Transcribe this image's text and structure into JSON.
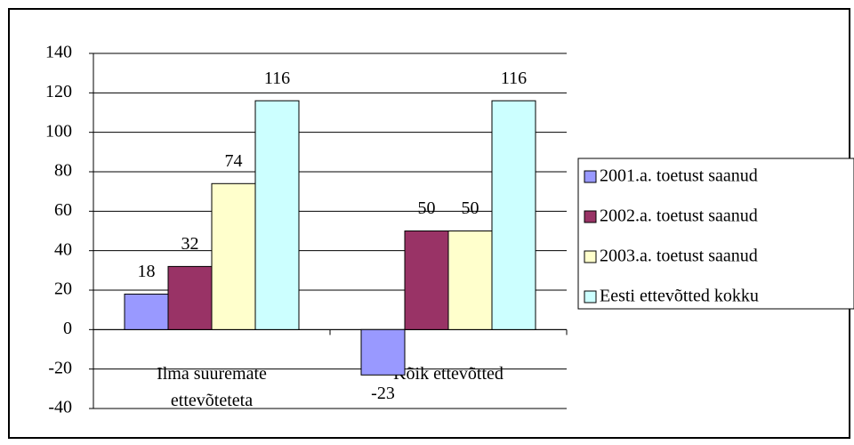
{
  "chart_data": {
    "type": "bar",
    "categories": [
      "Ilma suuremate ettevõteteta",
      "Kõik ettevõtted"
    ],
    "series": [
      {
        "name": "2001.a. toetust saanud",
        "color": "#9999ff",
        "values": [
          18,
          -23
        ]
      },
      {
        "name": "2002.a. toetust saanud",
        "color": "#993366",
        "values": [
          32,
          50
        ]
      },
      {
        "name": "2003.a. toetust saanud",
        "color": "#ffffcc",
        "values": [
          74,
          50
        ]
      },
      {
        "name": "Eesti ettevõtted kokku",
        "color": "#ccffff",
        "values": [
          116,
          116
        ]
      }
    ],
    "ylim": [
      -40,
      140
    ],
    "yticks": [
      -40,
      -20,
      0,
      20,
      40,
      60,
      80,
      100,
      120,
      140
    ],
    "grid": true,
    "legend": "right"
  }
}
